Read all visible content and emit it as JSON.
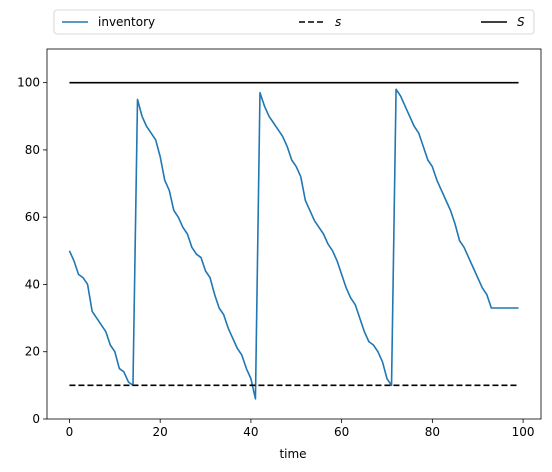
{
  "chart_data": {
    "type": "line",
    "xlabel": "time",
    "ylabel": "",
    "xlim": [
      -4.95,
      103.95
    ],
    "ylim": [
      0,
      110
    ],
    "xticks": [
      0,
      20,
      40,
      60,
      80,
      100
    ],
    "yticks": [
      0,
      20,
      40,
      60,
      80,
      100
    ],
    "legend_placement": "top (above plot, 3 columns)",
    "grid": false,
    "series": [
      {
        "name": "inventory",
        "color": "#1f77b4",
        "style": "solid",
        "x": [
          0,
          1,
          2,
          3,
          4,
          5,
          6,
          7,
          8,
          9,
          10,
          11,
          12,
          13,
          14,
          15,
          16,
          17,
          18,
          19,
          20,
          21,
          22,
          23,
          24,
          25,
          26,
          27,
          28,
          29,
          30,
          31,
          32,
          33,
          34,
          35,
          36,
          37,
          38,
          39,
          40,
          41,
          42,
          43,
          44,
          45,
          46,
          47,
          48,
          49,
          50,
          51,
          52,
          53,
          54,
          55,
          56,
          57,
          58,
          59,
          60,
          61,
          62,
          63,
          64,
          65,
          66,
          67,
          68,
          69,
          70,
          71,
          72,
          73,
          74,
          75,
          76,
          77,
          78,
          79,
          80,
          81,
          82,
          83,
          84,
          85,
          86,
          87,
          88,
          89,
          90,
          91,
          92,
          93,
          94,
          95,
          96,
          97,
          98,
          99
        ],
        "values": [
          50,
          47,
          43,
          42,
          40,
          32,
          30,
          28,
          26,
          22,
          20,
          15,
          14,
          11,
          10,
          95,
          90,
          87,
          85,
          83,
          78,
          71,
          68,
          62,
          60,
          57,
          55,
          51,
          49,
          48,
          44,
          42,
          37,
          33,
          31,
          27,
          24,
          21,
          19,
          15,
          12,
          6,
          97,
          93,
          90,
          88,
          86,
          84,
          81,
          77,
          75,
          72,
          65,
          62,
          59,
          57,
          55,
          52,
          50,
          47,
          43,
          39,
          36,
          34,
          30,
          26,
          23,
          22,
          20,
          17,
          12,
          10,
          98,
          96,
          93,
          90,
          87,
          85,
          81,
          77,
          75,
          71,
          68,
          65,
          62,
          58,
          53,
          51,
          48,
          45,
          42,
          39,
          37,
          33,
          33,
          33,
          33,
          33,
          33,
          33
        ]
      },
      {
        "name": "s",
        "color": "#000000",
        "style": "dashed",
        "x": [
          0,
          99
        ],
        "values": [
          10,
          10
        ]
      },
      {
        "name": "S",
        "color": "#000000",
        "style": "solid",
        "x": [
          0,
          99
        ],
        "values": [
          100,
          100
        ]
      }
    ]
  }
}
